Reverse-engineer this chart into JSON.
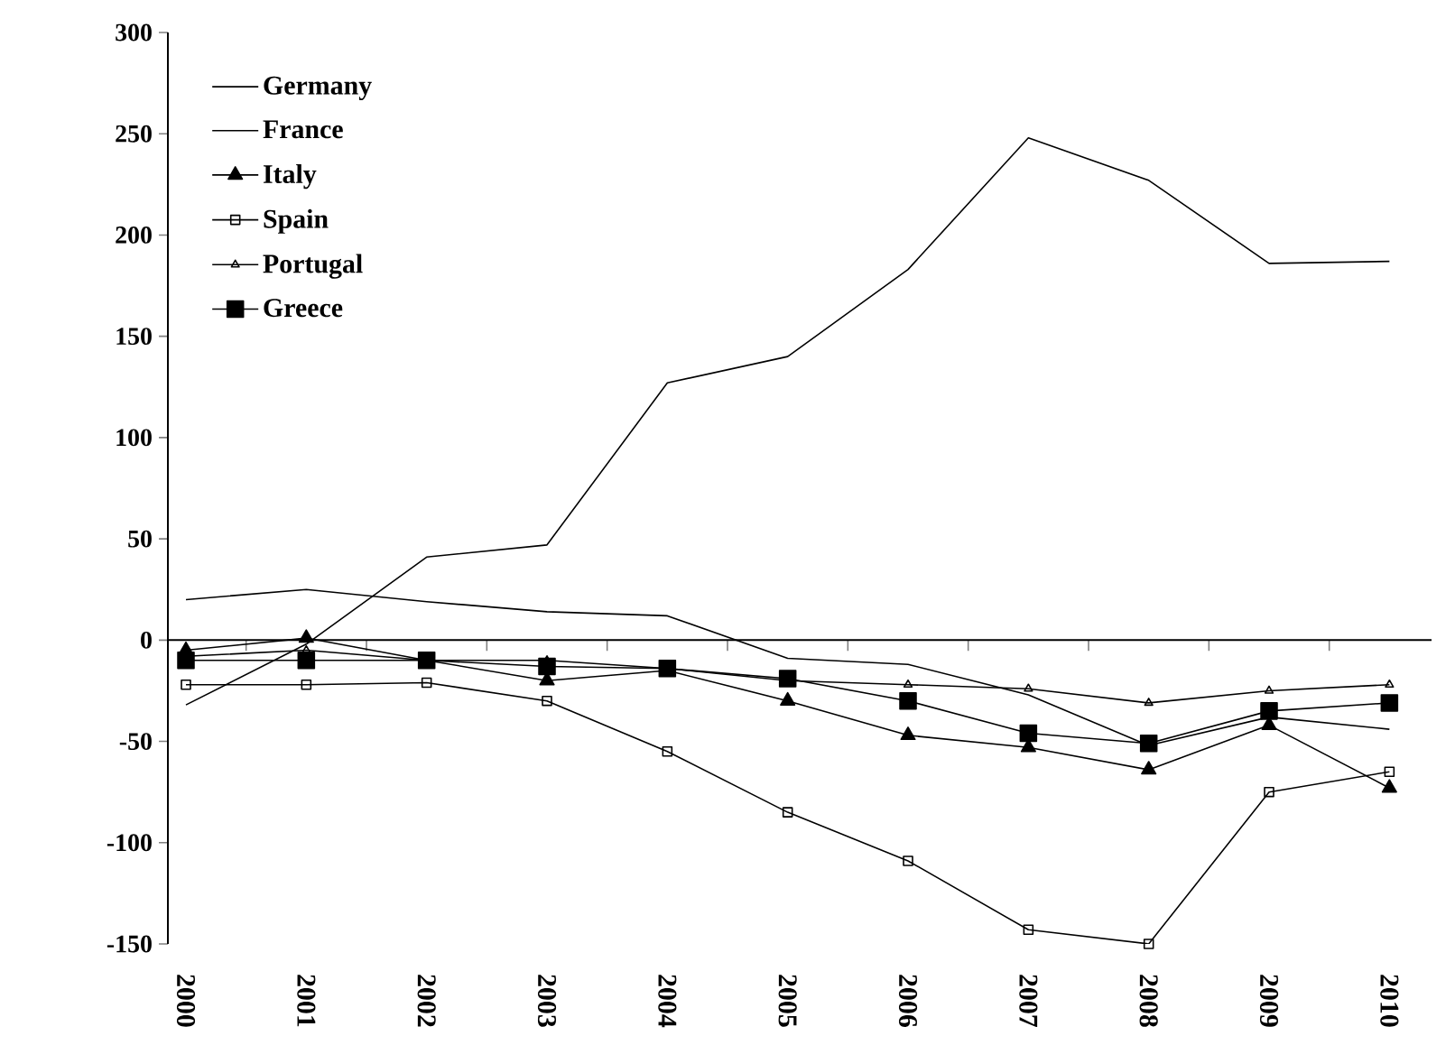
{
  "chart_data": {
    "type": "line",
    "categories": [
      "2000",
      "2001",
      "2002",
      "2003",
      "2004",
      "2005",
      "2006",
      "2007",
      "2008",
      "2009",
      "2010"
    ],
    "series": [
      {
        "name": "Germany",
        "color": "#000000",
        "marker": "none",
        "values": [
          -32,
          -2,
          41,
          47,
          127,
          140,
          183,
          248,
          227,
          186,
          187
        ]
      },
      {
        "name": "France",
        "color": "#000000",
        "marker": "none",
        "values": [
          20,
          25,
          19,
          14,
          12,
          -9,
          -12,
          -27,
          -52,
          -38,
          -44
        ]
      },
      {
        "name": "Italy",
        "color": "#000000",
        "marker": "triangle",
        "values": [
          -5,
          1,
          -10,
          -20,
          -15,
          -30,
          -47,
          -53,
          -64,
          -42,
          -73
        ]
      },
      {
        "name": "Spain",
        "color": "#000000",
        "marker": "square",
        "values": [
          -22,
          -22,
          -21,
          -30,
          -55,
          -85,
          -109,
          -143,
          -150,
          -75,
          -65
        ]
      },
      {
        "name": "Portugal",
        "color": "#000000",
        "marker": "triangle",
        "values": [
          -8,
          -5,
          -10,
          -10,
          -14,
          -20,
          -22,
          -24,
          -31,
          -25,
          -22
        ]
      },
      {
        "name": "Greece",
        "color": "#000000",
        "marker": "square",
        "values": [
          -10,
          -10,
          -10,
          -13,
          -14,
          -19,
          -30,
          -46,
          -51,
          -35,
          -31
        ]
      }
    ],
    "ylim": [
      -150,
      300
    ],
    "yticks": [
      -150,
      -100,
      -50,
      0,
      50,
      100,
      150,
      200,
      250,
      300
    ],
    "legend": "top left",
    "line_style": "solid"
  }
}
